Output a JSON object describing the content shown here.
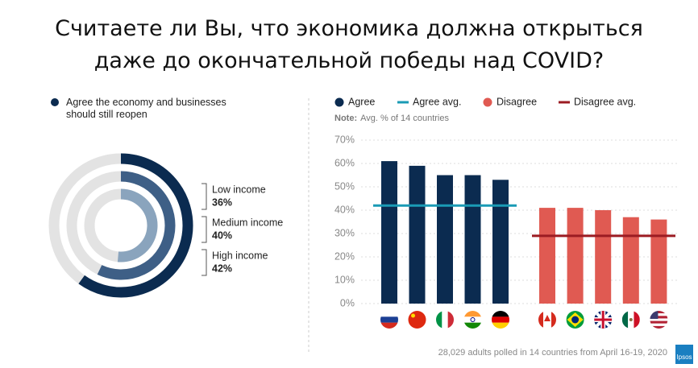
{
  "title": "Считаете ли Вы, что экономика должна открыться даже до окончательной победы над COVID?",
  "source": "28,029 adults polled in 14 countries from April 16-19, 2020",
  "logo": "Ipsos",
  "chart_data": [
    {
      "type": "radial-bar",
      "legend": "Agree the economy and businesses should still reopen",
      "categories": [
        "Low income",
        "Medium income",
        "High income"
      ],
      "values": [
        36,
        40,
        42
      ],
      "value_labels": [
        "36%",
        "40%",
        "42%"
      ],
      "colors": [
        "#8aa4bd",
        "#3e5f86",
        "#0b2b50"
      ],
      "track_color": "#e3e3e3",
      "rlim": [
        0,
        70
      ]
    },
    {
      "type": "bar",
      "note_label": "Note:",
      "note": "Avg. % of 14 countries",
      "categories": [
        null,
        null,
        null,
        null,
        null,
        null,
        null,
        null,
        null,
        null
      ],
      "series": [
        {
          "name": "Agree",
          "kind": "bar",
          "color": "#0b2b50",
          "values": [
            61,
            59,
            55,
            55,
            53,
            null,
            null,
            null,
            null,
            null
          ]
        },
        {
          "name": "Agree avg.",
          "kind": "avg",
          "color": "#1a9bb5",
          "value": 42
        },
        {
          "name": "Disagree",
          "kind": "bar",
          "color": "#e05a52",
          "values": [
            null,
            null,
            null,
            null,
            null,
            41,
            41,
            40,
            37,
            36
          ]
        },
        {
          "name": "Disagree avg.",
          "kind": "avg",
          "color": "#9b1b22",
          "value": 29
        }
      ],
      "ylim": [
        0,
        70
      ],
      "yticks": [
        {
          "value": 0,
          "label": "0%"
        },
        {
          "value": 10,
          "label": "10%"
        },
        {
          "value": 20,
          "label": "20%"
        },
        {
          "value": 30,
          "label": "30%"
        },
        {
          "value": 40,
          "label": "40%"
        },
        {
          "value": 50,
          "label": "50%"
        },
        {
          "value": 60,
          "label": "60%"
        },
        {
          "value": 70,
          "label": "70%"
        }
      ],
      "grid": true
    }
  ]
}
